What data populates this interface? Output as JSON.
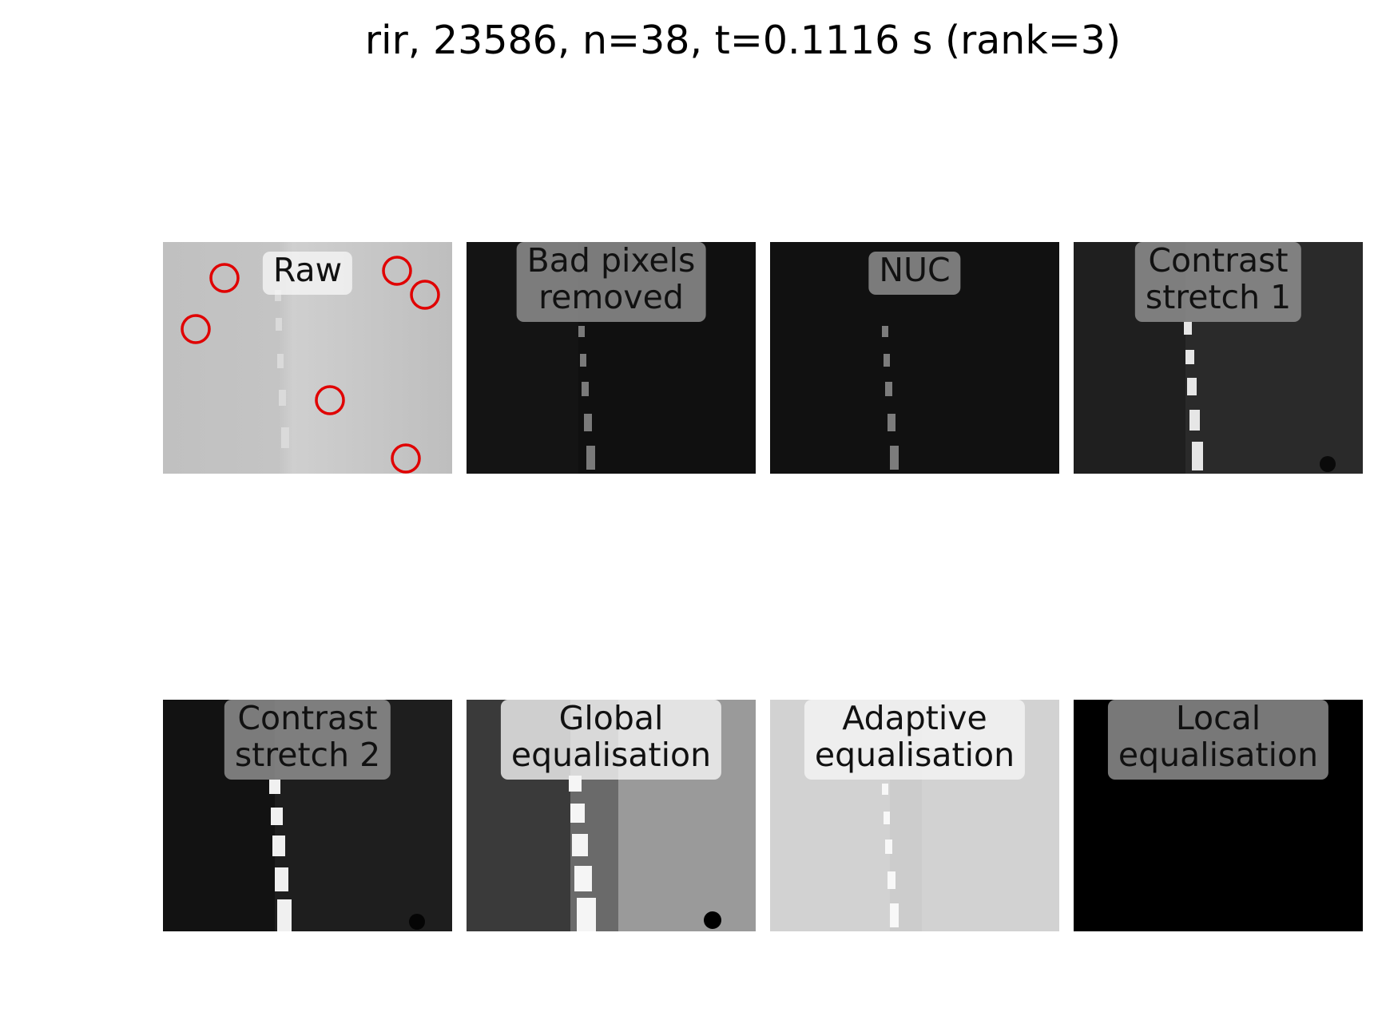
{
  "figure": {
    "title": "rir, 23586, n=38, t=0.1116 s (rank=3)",
    "panels": [
      {
        "label": "Raw",
        "label_text": "Raw"
      },
      {
        "label": "Bad pixels removed",
        "label_text": "Bad pixels\nremoved"
      },
      {
        "label": "NUC",
        "label_text": "NUC"
      },
      {
        "label": "Contrast stretch 1",
        "label_text": "Contrast\nstretch 1"
      },
      {
        "label": "Contrast stretch 2",
        "label_text": "Contrast\nstretch 2"
      },
      {
        "label": "Global equalisation",
        "label_text": "Global\nequalisation"
      },
      {
        "label": "Adaptive equalisation",
        "label_text": "Adaptive\nequalisation"
      },
      {
        "label": "Local equalisation",
        "label_text": "Local\nequalisation"
      }
    ],
    "bad_pixel_markers_count": 6,
    "colors": {
      "marker": "#e00000"
    }
  }
}
